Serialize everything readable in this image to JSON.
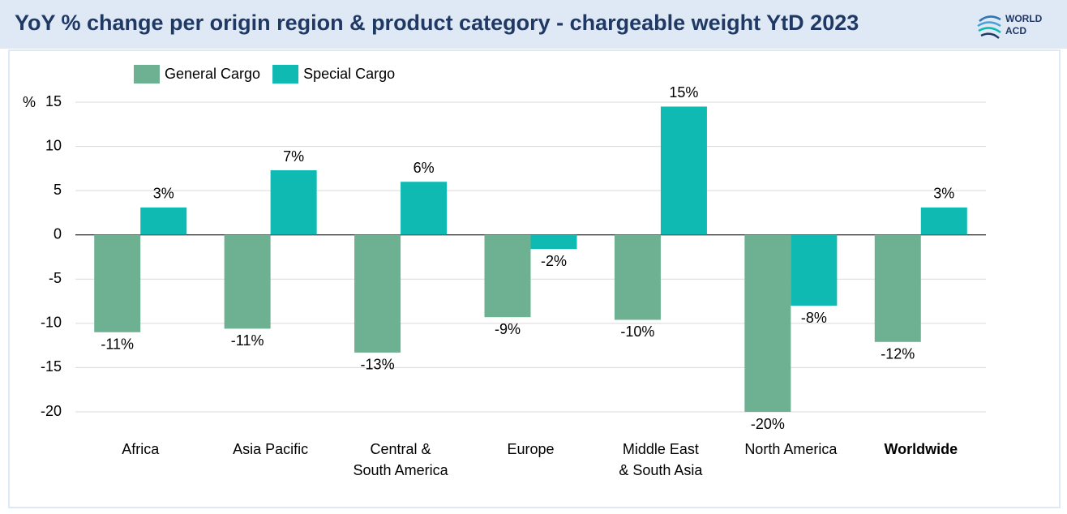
{
  "chart_data": {
    "type": "bar",
    "title": "YoY % change per origin region & product category - chargeable weight YtD 2023",
    "logo": [
      "WORLD",
      "ACD"
    ],
    "y_unit": "%",
    "categories": [
      "Africa",
      "Asia Pacific",
      "Central &\nSouth America",
      "Europe",
      "Middle East\n& South Asia",
      "North America",
      "Worldwide"
    ],
    "highlight_category": 6,
    "series": [
      {
        "name": "General Cargo",
        "color": "#6db192",
        "values": [
          -11.0,
          -10.6,
          -13.3,
          -9.3,
          -9.6,
          -20.0,
          -12.1
        ],
        "value_labels": [
          "-11%",
          "-11%",
          "-13%",
          "-9%",
          "-10%",
          "-20%",
          "-12%"
        ]
      },
      {
        "name": "Special Cargo",
        "color": "#0fbab3",
        "values": [
          3.1,
          7.3,
          6.0,
          -1.6,
          14.5,
          -8.0,
          3.1
        ],
        "value_labels": [
          "3%",
          "7%",
          "6%",
          "-2%",
          "15%",
          "-8%",
          "3%"
        ]
      }
    ],
    "ylim": [
      -20,
      15
    ],
    "yticks": [
      -20,
      -15,
      -10,
      -5,
      0,
      5,
      10,
      15
    ],
    "grid": true,
    "legend": "top-left"
  }
}
